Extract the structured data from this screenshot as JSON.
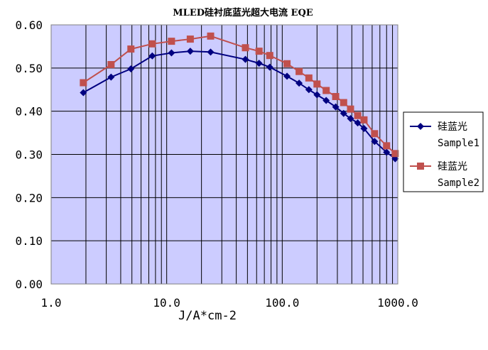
{
  "chart_data": {
    "type": "line",
    "title": "MLED硅衬底蓝光超大电流 EQE",
    "xlabel": "J/A*cm-2",
    "ylabel": "",
    "x_scale": "log",
    "xlim": [
      1.0,
      1000.0
    ],
    "ylim": [
      0.0,
      0.6
    ],
    "x_tick_labels": [
      "1.0",
      "10.0",
      "100.0",
      "1000.0"
    ],
    "y_tick_labels": [
      "0.00",
      "0.10",
      "0.20",
      "0.30",
      "0.40",
      "0.50",
      "0.60"
    ],
    "grid": true,
    "plot_background": "#ccccff",
    "legend_position": "right",
    "series": [
      {
        "name": "硅蓝光 Sample1",
        "legend_lines": [
          "硅蓝光",
          "Sample1"
        ],
        "color": "#000080",
        "marker": "diamond",
        "x": [
          1.9,
          3.3,
          4.9,
          7.5,
          11,
          16,
          24,
          48,
          63,
          78,
          110,
          140,
          170,
          200,
          240,
          290,
          340,
          390,
          450,
          510,
          630,
          800,
          950
        ],
        "y": [
          0.443,
          0.479,
          0.498,
          0.528,
          0.535,
          0.539,
          0.537,
          0.52,
          0.511,
          0.502,
          0.481,
          0.465,
          0.45,
          0.438,
          0.425,
          0.41,
          0.395,
          0.383,
          0.373,
          0.36,
          0.33,
          0.305,
          0.29
        ]
      },
      {
        "name": "硅蓝光 Sample2",
        "legend_lines": [
          "硅蓝光",
          "Sample2"
        ],
        "color": "#c0504d",
        "marker": "square",
        "x": [
          1.9,
          3.3,
          4.9,
          7.5,
          11,
          16,
          24,
          48,
          63,
          78,
          110,
          140,
          170,
          200,
          240,
          290,
          340,
          390,
          450,
          510,
          630,
          800,
          950
        ],
        "y": [
          0.466,
          0.508,
          0.544,
          0.556,
          0.562,
          0.567,
          0.574,
          0.547,
          0.539,
          0.529,
          0.51,
          0.492,
          0.477,
          0.463,
          0.448,
          0.434,
          0.42,
          0.405,
          0.39,
          0.38,
          0.348,
          0.32,
          0.302
        ]
      }
    ]
  }
}
